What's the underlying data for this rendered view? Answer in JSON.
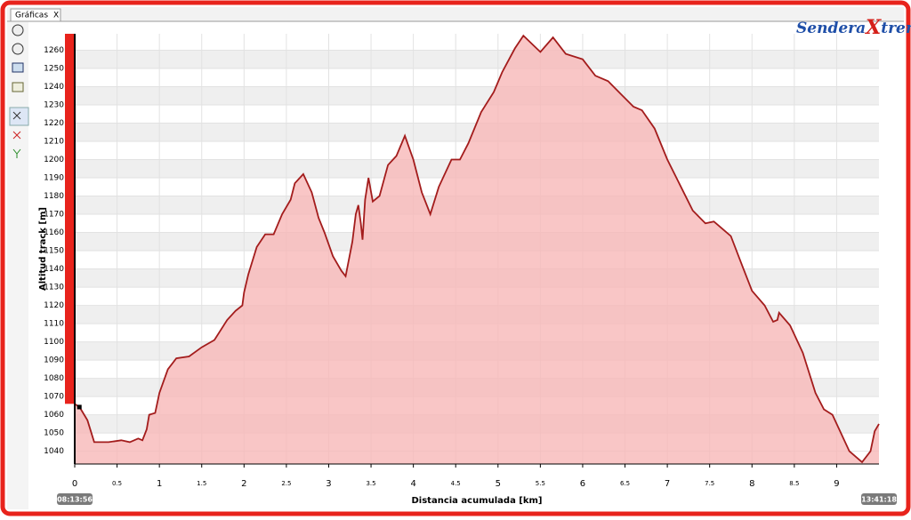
{
  "tab": {
    "label": "Gráficas",
    "close": "X"
  },
  "logo": [
    "Sendera",
    "X",
    "trem"
  ],
  "chart_data": {
    "type": "area",
    "x_label": "Distancia acumulada [km]",
    "y_label": "Altitud track [m]",
    "start_time": "08:13:56",
    "end_time": "13:41:18",
    "xlim": [
      0,
      9.5
    ],
    "ylim": [
      1033,
      1269
    ],
    "xticks": [
      0,
      0.5,
      1,
      1.5,
      2,
      2.5,
      3,
      3.5,
      4,
      4.5,
      5,
      5.5,
      6,
      6.5,
      7,
      7.5,
      8,
      8.5,
      9
    ],
    "yticks": [
      1040,
      1050,
      1060,
      1070,
      1080,
      1090,
      1100,
      1110,
      1120,
      1130,
      1140,
      1150,
      1160,
      1170,
      1180,
      1190,
      1200,
      1210,
      1220,
      1230,
      1240,
      1250,
      1260
    ],
    "grid": true,
    "color": "#a31c1c",
    "fill": "#f7b8b8",
    "x": [
      0,
      0.06,
      0.15,
      0.23,
      0.4,
      0.55,
      0.65,
      0.75,
      0.8,
      0.85,
      0.88,
      0.95,
      1.0,
      1.1,
      1.2,
      1.35,
      1.5,
      1.65,
      1.8,
      1.9,
      1.98,
      2.0,
      2.05,
      2.15,
      2.25,
      2.35,
      2.45,
      2.55,
      2.6,
      2.7,
      2.8,
      2.88,
      2.95,
      3.05,
      3.15,
      3.2,
      3.28,
      3.32,
      3.35,
      3.38,
      3.4,
      3.43,
      3.47,
      3.52,
      3.6,
      3.7,
      3.8,
      3.9,
      4.0,
      4.1,
      4.2,
      4.3,
      4.45,
      4.55,
      4.65,
      4.8,
      4.95,
      5.05,
      5.2,
      5.3,
      5.5,
      5.65,
      5.8,
      6.0,
      6.15,
      6.3,
      6.45,
      6.6,
      6.7,
      6.85,
      7.0,
      7.15,
      7.3,
      7.45,
      7.55,
      7.65,
      7.75,
      7.9,
      8.0,
      8.15,
      8.25,
      8.3,
      8.32,
      8.45,
      8.6,
      8.75,
      8.85,
      8.95,
      9.05,
      9.15,
      9.3,
      9.4,
      9.45,
      9.5
    ],
    "values": [
      1066,
      1064,
      1057,
      1045,
      1045,
      1046,
      1045,
      1047,
      1046,
      1052,
      1060,
      1061,
      1072,
      1085,
      1091,
      1092,
      1097,
      1101,
      1112,
      1117,
      1120,
      1127,
      1137,
      1152,
      1159,
      1159,
      1170,
      1178,
      1187,
      1192,
      1182,
      1168,
      1160,
      1147,
      1139,
      1136,
      1155,
      1170,
      1175,
      1165,
      1156,
      1178,
      1190,
      1177,
      1180,
      1197,
      1202,
      1213,
      1200,
      1182,
      1170,
      1185,
      1200,
      1200,
      1209,
      1226,
      1237,
      1248,
      1261,
      1268,
      1259,
      1267,
      1258,
      1255,
      1246,
      1243,
      1236,
      1229,
      1227,
      1217,
      1200,
      1186,
      1172,
      1165,
      1166,
      1162,
      1158,
      1140,
      1128,
      1120,
      1111,
      1112,
      1116,
      1109,
      1094,
      1072,
      1063,
      1060,
      1050,
      1040,
      1034,
      1040,
      1051,
      1055
    ]
  }
}
